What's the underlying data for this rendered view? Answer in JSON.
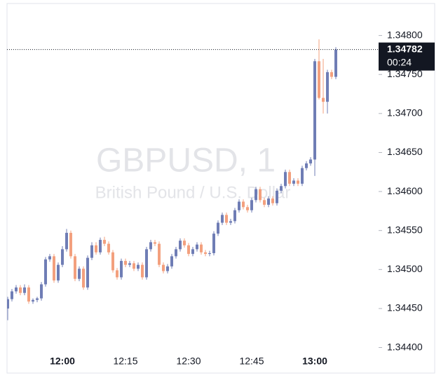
{
  "chart_data": {
    "type": "candlestick",
    "watermark_symbol": "GBPUSD, 1",
    "watermark_name": "British Pound / U.S. Dollar",
    "up_color": "#6f7db5",
    "down_color": "#f3a07e",
    "categories": [
      null,
      null,
      null,
      null,
      null,
      null,
      null,
      null,
      null,
      null,
      null,
      null,
      null,
      "12:00",
      null,
      null,
      null,
      null,
      null,
      null,
      null,
      null,
      null,
      null,
      null,
      null,
      null,
      null,
      "12:15",
      null,
      null,
      null,
      null,
      null,
      null,
      null,
      null,
      null,
      null,
      null,
      null,
      null,
      null,
      "12:30",
      null,
      null,
      null,
      null,
      null,
      null,
      null,
      null,
      null,
      null,
      null,
      null,
      null,
      null,
      "12:45",
      null,
      null,
      null,
      null,
      null,
      null,
      null,
      null,
      null,
      null,
      null,
      null,
      null,
      null,
      "13:00",
      null,
      null,
      null,
      null,
      null
    ],
    "open": [
      1.3445,
      1.34462,
      1.34472,
      1.34477,
      1.3447,
      1.34477,
      1.34459,
      1.34461,
      1.34463,
      1.34481,
      1.34513,
      1.34517,
      1.34486,
      1.34506,
      1.34526,
      1.34547,
      1.34517,
      1.34488,
      1.34501,
      1.34477,
      1.34515,
      1.34531,
      1.34522,
      1.34538,
      1.34533,
      1.34522,
      1.34499,
      1.3449,
      1.34511,
      1.34506,
      1.34508,
      1.34501,
      1.34506,
      1.3449,
      1.34526,
      1.34535,
      1.34533,
      1.34506,
      1.34498,
      1.34504,
      1.34517,
      1.34526,
      1.34537,
      1.34531,
      1.3452,
      1.34526,
      1.34532,
      1.34522,
      1.3452,
      1.34521,
      1.34546,
      1.3456,
      1.3457,
      1.3456,
      1.34562,
      1.34576,
      1.34587,
      1.3458,
      1.34576,
      1.34589,
      1.34603,
      1.34589,
      1.34583,
      1.34591,
      1.34585,
      1.34601,
      1.34607,
      1.34625,
      1.3461,
      1.34614,
      1.3461,
      1.3463,
      1.34636,
      1.34641,
      1.34767,
      1.3472,
      1.34715,
      1.34753,
      1.34747
    ],
    "high": [
      1.34465,
      1.34475,
      1.3448,
      1.3448,
      1.34481,
      1.3448,
      1.34463,
      1.34465,
      1.34484,
      1.34516,
      1.3452,
      1.3452,
      1.34509,
      1.3453,
      1.34552,
      1.3455,
      1.3452,
      1.34504,
      1.34504,
      1.34518,
      1.34535,
      1.34535,
      1.34541,
      1.34542,
      1.34536,
      1.34525,
      1.34502,
      1.34514,
      1.34514,
      1.34511,
      1.34511,
      1.34509,
      1.34509,
      1.34529,
      1.34538,
      1.34538,
      1.34536,
      1.34509,
      1.34507,
      1.3452,
      1.34529,
      1.3454,
      1.3454,
      1.34534,
      1.34529,
      1.34535,
      1.34535,
      1.34525,
      1.34524,
      1.34549,
      1.34563,
      1.34573,
      1.34573,
      1.34565,
      1.34579,
      1.3459,
      1.3459,
      1.34583,
      1.34592,
      1.34606,
      1.34606,
      1.34592,
      1.34594,
      1.34594,
      1.34604,
      1.3461,
      1.34628,
      1.34628,
      1.34617,
      1.34617,
      1.34633,
      1.34639,
      1.34644,
      1.3477,
      1.34795,
      1.3477,
      1.34756,
      1.34756,
      1.34785
    ],
    "low": [
      1.34435,
      1.34459,
      1.34469,
      1.34467,
      1.34467,
      1.34456,
      1.34456,
      1.34458,
      1.3446,
      1.34478,
      1.3451,
      1.34483,
      1.34483,
      1.34503,
      1.34523,
      1.34514,
      1.34485,
      1.34485,
      1.34474,
      1.34474,
      1.34512,
      1.34519,
      1.34519,
      1.3453,
      1.34519,
      1.34496,
      1.34487,
      1.34487,
      1.34503,
      1.34503,
      1.34498,
      1.34498,
      1.34487,
      1.34487,
      1.34523,
      1.3453,
      1.34503,
      1.34495,
      1.34495,
      1.34501,
      1.34514,
      1.34523,
      1.34528,
      1.34517,
      1.34517,
      1.34523,
      1.34519,
      1.34517,
      1.34517,
      1.34518,
      1.34543,
      1.34557,
      1.34557,
      1.34557,
      1.34559,
      1.34573,
      1.34577,
      1.34573,
      1.34573,
      1.34586,
      1.34586,
      1.3458,
      1.3458,
      1.34582,
      1.34582,
      1.34598,
      1.34604,
      1.34607,
      1.34607,
      1.34607,
      1.34607,
      1.34627,
      1.34633,
      1.3462,
      1.34718,
      1.347,
      1.347,
      1.34744,
      1.34744
    ],
    "close": [
      1.34462,
      1.34472,
      1.34477,
      1.3447,
      1.34477,
      1.34459,
      1.34461,
      1.34463,
      1.34481,
      1.34513,
      1.34517,
      1.34486,
      1.34506,
      1.34526,
      1.34547,
      1.34517,
      1.34488,
      1.34501,
      1.34477,
      1.34515,
      1.34531,
      1.34522,
      1.34538,
      1.34533,
      1.34522,
      1.34499,
      1.3449,
      1.34511,
      1.34506,
      1.34508,
      1.34501,
      1.34506,
      1.3449,
      1.34526,
      1.34535,
      1.34533,
      1.34506,
      1.34498,
      1.34504,
      1.34517,
      1.34526,
      1.34537,
      1.34531,
      1.3452,
      1.34526,
      1.34532,
      1.34522,
      1.3452,
      1.34521,
      1.34546,
      1.3456,
      1.3457,
      1.3456,
      1.34562,
      1.34576,
      1.34587,
      1.3458,
      1.34576,
      1.34589,
      1.34603,
      1.34589,
      1.34583,
      1.34591,
      1.34585,
      1.34601,
      1.34607,
      1.34625,
      1.3461,
      1.34614,
      1.3461,
      1.3463,
      1.34636,
      1.34641,
      1.34767,
      1.3472,
      1.34715,
      1.34753,
      1.34747,
      1.34782
    ],
    "ylim": [
      1.34396,
      1.34841
    ],
    "yticks": [
      {
        "value": 1.344,
        "label": "1.34400"
      },
      {
        "value": 1.3445,
        "label": "1.34450"
      },
      {
        "value": 1.345,
        "label": "1.34500"
      },
      {
        "value": 1.3455,
        "label": "1.34550"
      },
      {
        "value": 1.346,
        "label": "1.34600"
      },
      {
        "value": 1.3465,
        "label": "1.34650"
      },
      {
        "value": 1.347,
        "label": "1.34700"
      },
      {
        "value": 1.3475,
        "label": "1.34750"
      },
      {
        "value": 1.348,
        "label": "1.34800"
      }
    ],
    "last_price": {
      "value": 1.34782,
      "label": "1.34782"
    },
    "countdown": "00:24"
  }
}
